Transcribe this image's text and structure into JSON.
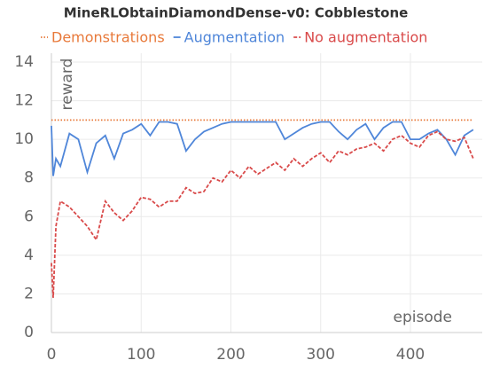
{
  "chart_data": {
    "type": "line",
    "title": "MineRLObtainDiamondDense-v0: Cobblestone",
    "x_label": "episode",
    "y_label": "reward",
    "x": [
      0,
      2,
      5,
      10,
      20,
      30,
      40,
      50,
      60,
      70,
      80,
      90,
      100,
      110,
      120,
      130,
      140,
      150,
      160,
      170,
      180,
      190,
      200,
      210,
      220,
      230,
      240,
      250,
      260,
      270,
      280,
      290,
      300,
      310,
      320,
      330,
      340,
      350,
      360,
      370,
      380,
      390,
      400,
      410,
      420,
      430,
      440,
      450,
      460,
      470
    ],
    "series": [
      {
        "name": "Demonstrations",
        "color": "#e8793a",
        "style": "dotted",
        "values": [
          11,
          11,
          11,
          11,
          11,
          11,
          11,
          11,
          11,
          11,
          11,
          11,
          11,
          11,
          11,
          11,
          11,
          11,
          11,
          11,
          11,
          11,
          11,
          11,
          11,
          11,
          11,
          11,
          11,
          11,
          11,
          11,
          11,
          11,
          11,
          11,
          11,
          11,
          11,
          11,
          11,
          11,
          11,
          11,
          11,
          11,
          11,
          11,
          11,
          11
        ]
      },
      {
        "name": "Augmentation",
        "color": "#4f86d9",
        "style": "solid",
        "values": [
          10.7,
          8.1,
          9.0,
          8.6,
          10.3,
          10.0,
          8.3,
          9.8,
          10.2,
          9.0,
          10.3,
          10.5,
          10.8,
          10.2,
          10.9,
          10.9,
          10.8,
          9.4,
          10.0,
          10.4,
          10.6,
          10.8,
          10.9,
          10.9,
          10.9,
          10.9,
          10.9,
          10.9,
          10.0,
          10.3,
          10.6,
          10.8,
          10.9,
          10.9,
          10.4,
          10.0,
          10.5,
          10.8,
          10.0,
          10.6,
          10.9,
          10.9,
          10.0,
          10.0,
          10.3,
          10.5,
          10.0,
          9.2,
          10.2,
          10.5
        ]
      },
      {
        "name": "No augmentation",
        "color": "#d94a4a",
        "style": "dashed",
        "values": [
          3.6,
          1.8,
          5.5,
          6.8,
          6.5,
          6.0,
          5.5,
          4.8,
          6.8,
          6.2,
          5.8,
          6.3,
          7.0,
          6.9,
          6.5,
          6.8,
          6.8,
          7.5,
          7.2,
          7.3,
          8.0,
          7.8,
          8.4,
          8.0,
          8.6,
          8.2,
          8.5,
          8.8,
          8.4,
          9.0,
          8.6,
          9.0,
          9.3,
          8.8,
          9.4,
          9.2,
          9.5,
          9.6,
          9.8,
          9.4,
          10.0,
          10.2,
          9.8,
          9.6,
          10.2,
          10.4,
          10.0,
          9.9,
          10.1,
          9.0
        ]
      }
    ],
    "xlim": [
      0,
      480
    ],
    "ylim": [
      0,
      14
    ],
    "xticks": [
      0,
      100,
      200,
      300,
      400
    ],
    "yticks": [
      0,
      2,
      4,
      6,
      8,
      10,
      12,
      14
    ],
    "grid": true
  }
}
